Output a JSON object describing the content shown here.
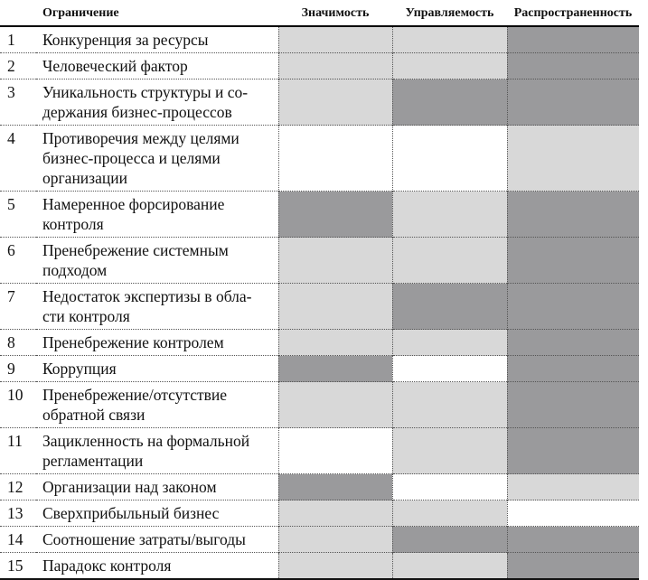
{
  "table": {
    "headers": {
      "number": "",
      "limitation": "Ограничение",
      "significance": "Значимость",
      "manageability": "Управляемость",
      "prevalence": "Распространенность"
    },
    "shade_colors": {
      "light": "#d8d8d8",
      "dark": "#9a9a9c",
      "none": "#ffffff"
    },
    "rows": [
      {
        "num": "1",
        "name": "Конкуренция за ресурсы",
        "significance": "light",
        "manageability": "light",
        "prevalence": "dark"
      },
      {
        "num": "2",
        "name": "Человеческий фактор",
        "significance": "light",
        "manageability": "light",
        "prevalence": "dark"
      },
      {
        "num": "3",
        "name": "Уникальность структуры и со-\nдержания бизнес-процессов",
        "significance": "light",
        "manageability": "dark",
        "prevalence": "dark"
      },
      {
        "num": "4",
        "name": "Противоречия между целями\nбизнес-процесса и целями\nорганизации",
        "significance": "none",
        "manageability": "none",
        "prevalence": "light"
      },
      {
        "num": "5",
        "name": "Намеренное форсирование\nконтроля",
        "significance": "dark",
        "manageability": "light",
        "prevalence": "dark"
      },
      {
        "num": "6",
        "name": "Пренебрежение системным\nподходом",
        "significance": "light",
        "manageability": "light",
        "prevalence": "dark"
      },
      {
        "num": "7",
        "name": "Недостаток экспертизы в обла-\nсти контроля",
        "significance": "light",
        "manageability": "dark",
        "prevalence": "dark"
      },
      {
        "num": "8",
        "name": "Пренебрежение контролем",
        "significance": "light",
        "manageability": "light",
        "prevalence": "dark"
      },
      {
        "num": "9",
        "name": "Коррупция",
        "significance": "dark",
        "manageability": "none",
        "prevalence": "dark"
      },
      {
        "num": "10",
        "name": "Пренебрежение/отсутствие\nобратной связи",
        "significance": "light",
        "manageability": "light",
        "prevalence": "dark"
      },
      {
        "num": "11",
        "name": "Зацикленность на формальной\nрегламентации",
        "significance": "none",
        "manageability": "light",
        "prevalence": "dark"
      },
      {
        "num": "12",
        "name": "Организации над законом",
        "significance": "dark",
        "manageability": "none",
        "prevalence": "light"
      },
      {
        "num": "13",
        "name": "Сверхприбыльный бизнес",
        "significance": "light",
        "manageability": "light",
        "prevalence": "none"
      },
      {
        "num": "14",
        "name": "Соотношение затраты/выгоды",
        "significance": "light",
        "manageability": "dark",
        "prevalence": "dark"
      },
      {
        "num": "15",
        "name": "Парадокс контроля",
        "significance": "light",
        "manageability": "light",
        "prevalence": "dark"
      }
    ]
  }
}
